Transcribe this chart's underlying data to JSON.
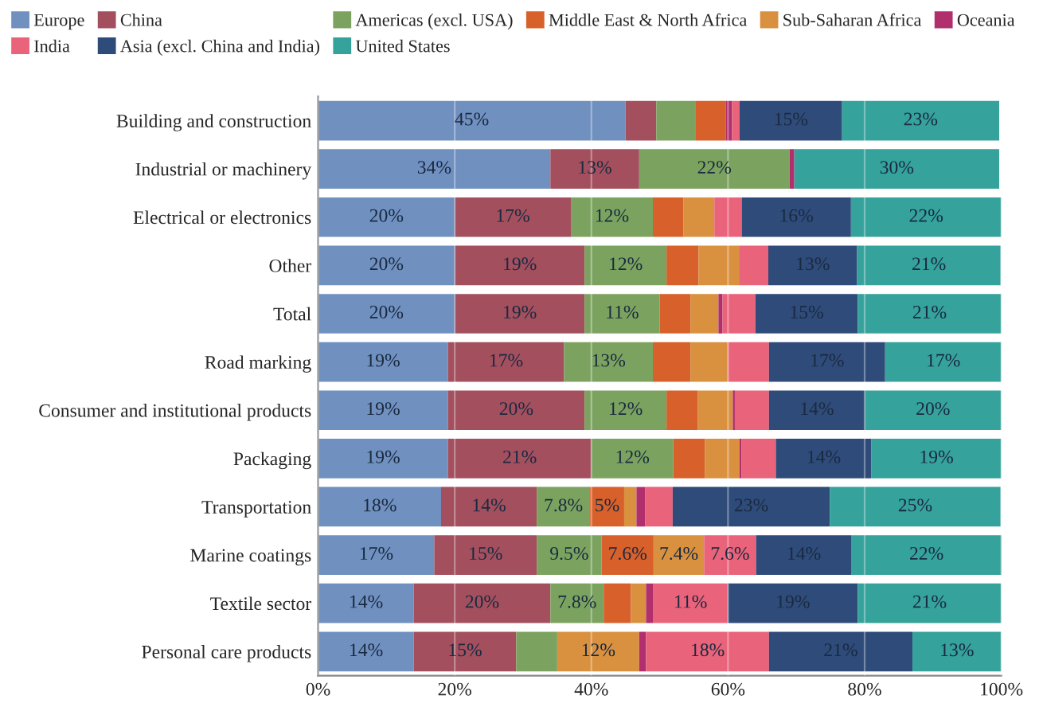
{
  "chart_data": {
    "type": "bar",
    "orientation": "horizontal",
    "stacked": true,
    "categories": [
      "Building and construction",
      "Industrial or machinery",
      "Electrical or electronics",
      "Other",
      "Total",
      "Road marking",
      "Consumer and institutional products",
      "Packaging",
      "Transportation",
      "Marine coatings",
      "Textile sector",
      "Personal care products"
    ],
    "series": [
      {
        "name": "Europe",
        "color": "#7090c0",
        "values": [
          45,
          34,
          20,
          20,
          20,
          19,
          19,
          19,
          18,
          17,
          14,
          14
        ],
        "value_labels": [
          "45%",
          "34%",
          "20%",
          "20%",
          "20%",
          "19%",
          "19%",
          "19%",
          "18%",
          "17%",
          "14%",
          "14%"
        ]
      },
      {
        "name": "China",
        "color": "#a34f5e",
        "values": [
          4.5,
          13,
          17,
          19,
          19,
          17,
          20,
          21,
          14,
          15,
          20,
          15
        ],
        "value_labels": [
          null,
          "13%",
          "17%",
          "19%",
          "19%",
          "17%",
          "20%",
          "21%",
          "14%",
          "15%",
          "20%",
          "15%"
        ]
      },
      {
        "name": "Americas (excl. USA)",
        "color": "#7ba35f",
        "values": [
          5.7,
          22,
          12,
          12,
          11,
          13,
          12,
          12,
          7.8,
          9.5,
          7.8,
          6
        ],
        "value_labels": [
          null,
          "22%",
          "12%",
          "12%",
          "11%",
          "13%",
          "12%",
          "12%",
          "7.8%",
          "9.5%",
          "7.8%",
          null
        ]
      },
      {
        "name": "Middle East & North Africa",
        "color": "#d8602b",
        "values": [
          4.5,
          0,
          4.5,
          4.7,
          4.5,
          5.5,
          4.6,
          4.6,
          5,
          7.6,
          4,
          0
        ],
        "value_labels": [
          null,
          null,
          null,
          null,
          null,
          null,
          null,
          null,
          "5%",
          "7.6%",
          null,
          null
        ]
      },
      {
        "name": "Sub-Saharan Africa",
        "color": "#d9913f",
        "values": [
          0,
          0,
          4.5,
          5.9,
          4.1,
          5.5,
          5.1,
          5.1,
          1.8,
          7.4,
          2.2,
          12
        ],
        "value_labels": [
          null,
          null,
          null,
          null,
          null,
          null,
          null,
          null,
          null,
          "7.4%",
          null,
          "12%"
        ]
      },
      {
        "name": "Oceania",
        "color": "#b02f6c",
        "values": [
          0.9,
          0.7,
          0,
          0,
          0.6,
          0,
          0.3,
          0.3,
          1.3,
          0,
          1,
          1
        ],
        "value_labels": [
          null,
          null,
          null,
          null,
          null,
          null,
          null,
          null,
          null,
          null,
          null,
          null
        ]
      },
      {
        "name": "India",
        "color": "#e9637a",
        "values": [
          1.1,
          0,
          4,
          4.3,
          4.8,
          6,
          5,
          5,
          4,
          7.6,
          11,
          18
        ],
        "value_labels": [
          null,
          null,
          null,
          null,
          null,
          null,
          null,
          null,
          null,
          "7.6%",
          "11%",
          "18%"
        ]
      },
      {
        "name": "Asia (excl. China and India)",
        "color": "#2f4b7a",
        "values": [
          15,
          0,
          16,
          13,
          15,
          17,
          14,
          14,
          23,
          14,
          19,
          21
        ],
        "value_labels": [
          "15%",
          null,
          "16%",
          "13%",
          "15%",
          "17%",
          "14%",
          "14%",
          "23%",
          "14%",
          "19%",
          "21%"
        ]
      },
      {
        "name": "United States",
        "color": "#35a29b",
        "values": [
          23,
          30,
          22,
          21,
          21,
          17,
          20,
          19,
          25,
          22,
          21,
          13
        ],
        "value_labels": [
          "23%",
          "30%",
          "22%",
          "21%",
          "21%",
          "17%",
          "20%",
          "19%",
          "25%",
          "22%",
          "21%",
          "13%"
        ]
      }
    ],
    "xlim": [
      0,
      100
    ],
    "xticks": [
      {
        "value": 0,
        "label": "0%"
      },
      {
        "value": 20,
        "label": "20%"
      },
      {
        "value": 40,
        "label": "40%"
      },
      {
        "value": 60,
        "label": "60%"
      },
      {
        "value": 80,
        "label": "80%"
      },
      {
        "value": 100,
        "label": "100%"
      }
    ],
    "grid": "x",
    "legend": "top"
  }
}
